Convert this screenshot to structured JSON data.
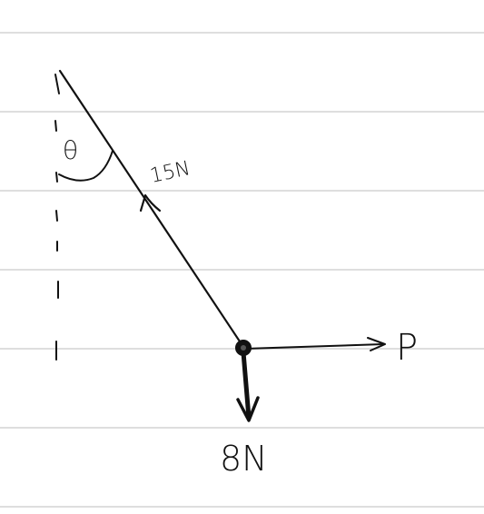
{
  "diagram": {
    "angle_label": "θ",
    "tension_label": "15N",
    "weight_label": "8N",
    "pull_label": "P",
    "ink_color": "#111111",
    "ruled_line_color": "#d4d4d4"
  }
}
